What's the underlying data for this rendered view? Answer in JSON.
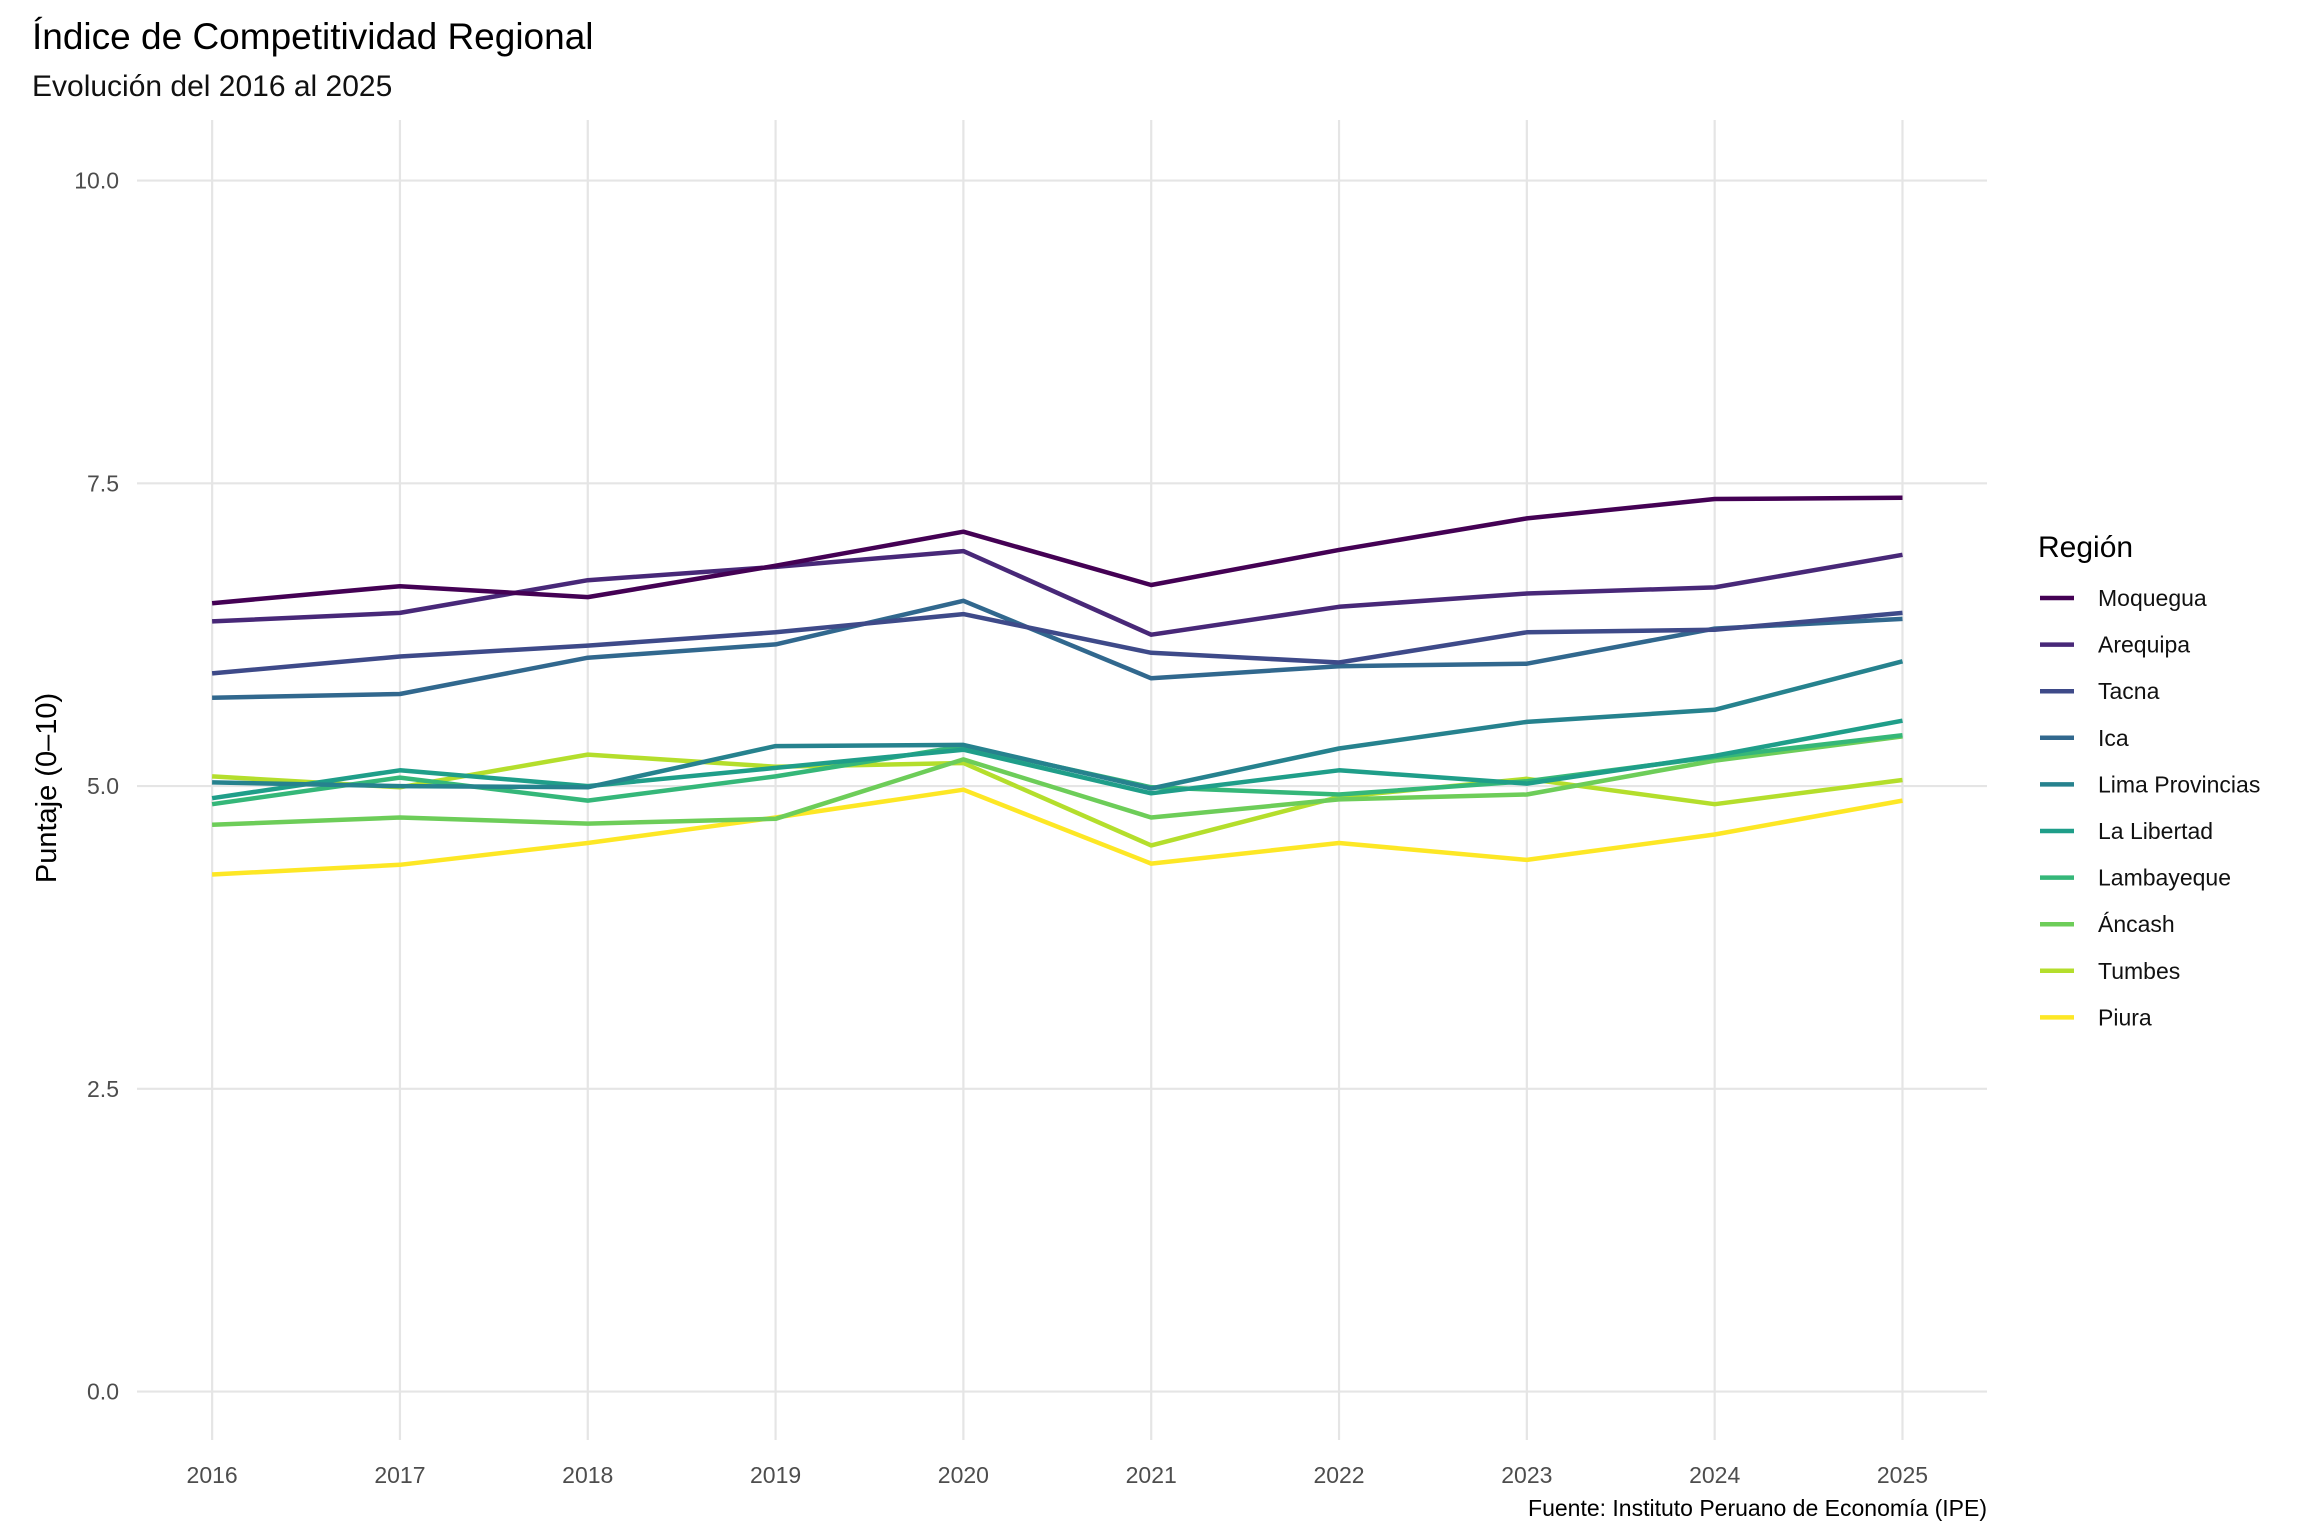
{
  "chart_data": {
    "type": "line",
    "title": "Índice de Competitividad Regional",
    "subtitle": "Evolución del 2016 al 2025",
    "xlabel": "",
    "ylabel": "Puntaje (0–10)",
    "caption": "Fuente: Instituto Peruano de Economía (IPE)",
    "legend_title": "Región",
    "legend_position": "right",
    "grid": true,
    "x": [
      2016,
      2017,
      2018,
      2019,
      2020,
      2021,
      2022,
      2023,
      2024,
      2025
    ],
    "x_tick_labels": [
      "2016",
      "2017",
      "2018",
      "2019",
      "2020",
      "2021",
      "2022",
      "2023",
      "2024",
      "2025"
    ],
    "xlim": [
      2015.6,
      2025.45
    ],
    "ylim": [
      -0.4,
      10.5
    ],
    "y_ticks": [
      0,
      2.5,
      5,
      7.5,
      10
    ],
    "y_tick_labels": [
      "0.0",
      "2.5",
      "5.0",
      "7.5",
      "10.0"
    ],
    "series": [
      {
        "name": "Moquegua",
        "color": "#440154",
        "values": [
          6.51,
          6.65,
          6.56,
          6.82,
          7.1,
          6.66,
          6.95,
          7.21,
          7.37,
          7.38
        ]
      },
      {
        "name": "Arequipa",
        "color": "#482878",
        "values": [
          6.36,
          6.43,
          6.7,
          6.81,
          6.94,
          6.25,
          6.48,
          6.59,
          6.64,
          6.91
        ]
      },
      {
        "name": "Tacna",
        "color": "#3E4A89",
        "values": [
          5.93,
          6.07,
          6.16,
          6.27,
          6.42,
          6.1,
          6.02,
          6.27,
          6.29,
          6.43
        ]
      },
      {
        "name": "Ica",
        "color": "#31688E",
        "values": [
          5.73,
          5.76,
          6.06,
          6.17,
          6.53,
          5.89,
          5.99,
          6.01,
          6.3,
          6.38
        ]
      },
      {
        "name": "Lima Provincias",
        "color": "#26828E",
        "values": [
          5.03,
          5.0,
          4.99,
          5.33,
          5.34,
          4.98,
          5.31,
          5.53,
          5.63,
          6.03
        ]
      },
      {
        "name": "La Libertad",
        "color": "#1F9E89",
        "values": [
          4.9,
          5.13,
          5.0,
          5.15,
          5.3,
          4.94,
          5.13,
          5.02,
          5.25,
          5.54
        ]
      },
      {
        "name": "Lambayeque",
        "color": "#35B779",
        "values": [
          4.85,
          5.07,
          4.88,
          5.08,
          5.33,
          4.99,
          4.93,
          5.04,
          5.24,
          5.42
        ]
      },
      {
        "name": "Áncash",
        "color": "#6DCD59",
        "values": [
          4.68,
          4.74,
          4.69,
          4.73,
          5.22,
          4.74,
          4.89,
          4.93,
          5.21,
          5.41
        ]
      },
      {
        "name": "Tumbes",
        "color": "#B4DE2C",
        "values": [
          5.08,
          4.99,
          5.26,
          5.16,
          5.19,
          4.51,
          4.91,
          5.06,
          4.85,
          5.05
        ]
      },
      {
        "name": "Piura",
        "color": "#FDE725",
        "values": [
          4.27,
          4.35,
          4.53,
          4.74,
          4.97,
          4.36,
          4.53,
          4.39,
          4.6,
          4.88
        ]
      }
    ]
  }
}
